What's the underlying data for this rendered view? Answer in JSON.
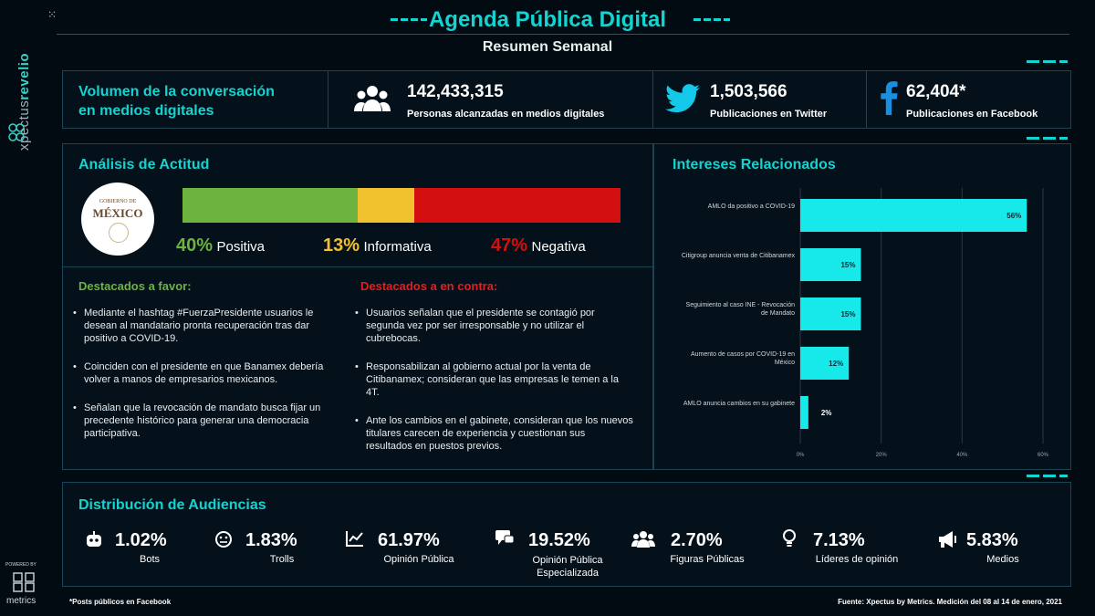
{
  "brand": {
    "name": "revelio",
    "prefix": "xpectus",
    "powered_by": "POWERED BY",
    "metrics_label": "metrics"
  },
  "header": {
    "title": "Agenda Pública Digital",
    "subtitle": "Resumen Semanal"
  },
  "volume": {
    "title_line1": "Volumen de la conversación",
    "title_line2": "en medios digitales",
    "stats": [
      {
        "icon": "people-icon",
        "value": "142,433,315",
        "label": "Personas alcanzadas en medios digitales"
      },
      {
        "icon": "twitter-icon",
        "value": "1,503,566",
        "label": "Publicaciones en Twitter"
      },
      {
        "icon": "facebook-icon",
        "value": "62,404*",
        "label": "Publicaciones en Facebook"
      }
    ]
  },
  "attitude": {
    "title": "Análisis de Actitud",
    "logo_text_top": "GOBIERNO DE",
    "logo_text_main": "MÉXICO",
    "segments": [
      {
        "pct": "40%",
        "label": "Positiva",
        "value": 40,
        "color": "#6cb33f"
      },
      {
        "pct": "13%",
        "label": "Informativa",
        "value": 13,
        "color": "#f2c12e"
      },
      {
        "pct": "47%",
        "label": "Negativa",
        "value": 47,
        "color": "#d40f0f"
      }
    ],
    "favor_title": "Destacados a favor:",
    "favor_items": [
      "Mediante el hashtag #FuerzaPresidente usuarios le desean al mandatario pronta recuperación tras dar positivo a COVID-19.",
      "Coinciden con el presidente en que Banamex debería volver a manos de empresarios mexicanos.",
      "Señalan que la revocación de mandato busca fijar un precedente histórico para generar una democracia participativa."
    ],
    "contra_title": "Destacados a en contra:",
    "contra_items": [
      "Usuarios señalan que el presidente se contagió por segunda vez por ser irresponsable y no utilizar el cubrebocas.",
      "Responsabilizan al gobierno actual por la venta de Citibanamex; consideran que las empresas le temen a la 4T.",
      "Ante los cambios en el gabinete, consideran que los nuevos titulares carecen de experiencia y cuestionan sus resultados en puestos previos."
    ]
  },
  "interests": {
    "title": "Intereses Relacionados"
  },
  "chart_data": {
    "type": "bar",
    "orientation": "horizontal",
    "categories": [
      "AMLO da positivo a COVID-19",
      "Citigroup anuncia venta de Citibanamex",
      "Seguimiento al caso INE - Revocación de Mandato",
      "Aumento de casos por COVID-19 en México",
      "AMLO anuncia cambios en su gabinete"
    ],
    "values": [
      56,
      15,
      15,
      12,
      2
    ],
    "value_labels": [
      "56%",
      "15%",
      "15%",
      "12%",
      "2%"
    ],
    "x_ticks": [
      "0%",
      "20%",
      "40%",
      "60%"
    ],
    "xlim": [
      0,
      60
    ],
    "grid": true,
    "bar_color": "#17e8ea"
  },
  "audience": {
    "title": "Distribución de Audiencias",
    "items": [
      {
        "icon": "robot-icon",
        "value": "1.02%",
        "label": "Bots"
      },
      {
        "icon": "troll-icon",
        "value": "1.83%",
        "label": "Trolls"
      },
      {
        "icon": "chart-line-icon",
        "value": "61.97%",
        "label": "Opinión Pública"
      },
      {
        "icon": "chat-icon",
        "value": "19.52%",
        "label": "Opinión Pública Especializada"
      },
      {
        "icon": "group-icon",
        "value": "2.70%",
        "label": "Figuras Públicas"
      },
      {
        "icon": "bulb-icon",
        "value": "7.13%",
        "label": "Líderes de opinión"
      },
      {
        "icon": "megaphone-icon",
        "value": "5.83%",
        "label": "Medios"
      }
    ]
  },
  "footer": {
    "note": "*Posts públicos en Facebook",
    "source": "Fuente: Xpectus by Metrics. Medición del 08 al 14 de enero, 2021"
  }
}
